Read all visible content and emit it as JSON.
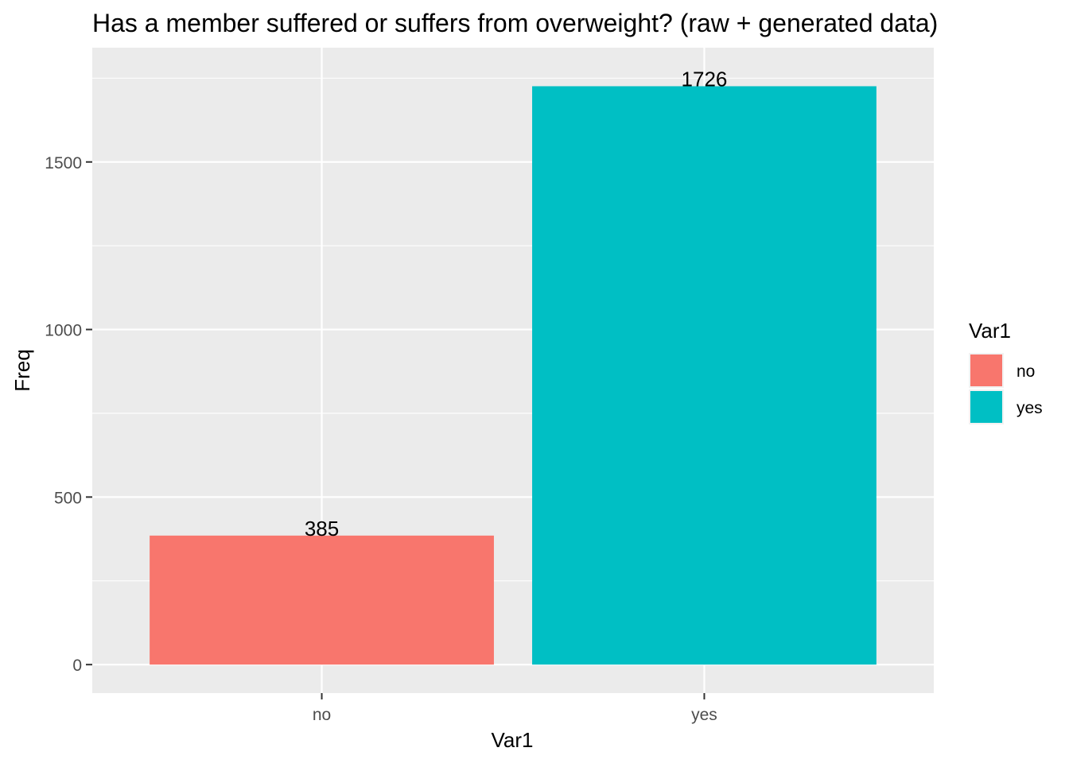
{
  "chart_data": {
    "type": "bar",
    "title": "Has a member suffered or suffers from overweight? (raw + generated data)",
    "xlabel": "Var1",
    "ylabel": "Freq",
    "categories": [
      "no",
      "yes"
    ],
    "values": [
      385,
      1726
    ],
    "data_labels": [
      "385",
      "1726"
    ],
    "colors": [
      "#F8766D",
      "#00BFC4"
    ],
    "ylim": [
      -85,
      1841
    ],
    "yticks": [
      0,
      500,
      1000,
      1500
    ],
    "ytick_labels": [
      "0",
      "500",
      "1000",
      "1500"
    ],
    "grid": true,
    "legend": {
      "title": "Var1",
      "placement": "right",
      "entries": [
        "no",
        "yes"
      ]
    },
    "panel_background": "#EBEBEB",
    "grid_color": "#FFFFFF"
  }
}
